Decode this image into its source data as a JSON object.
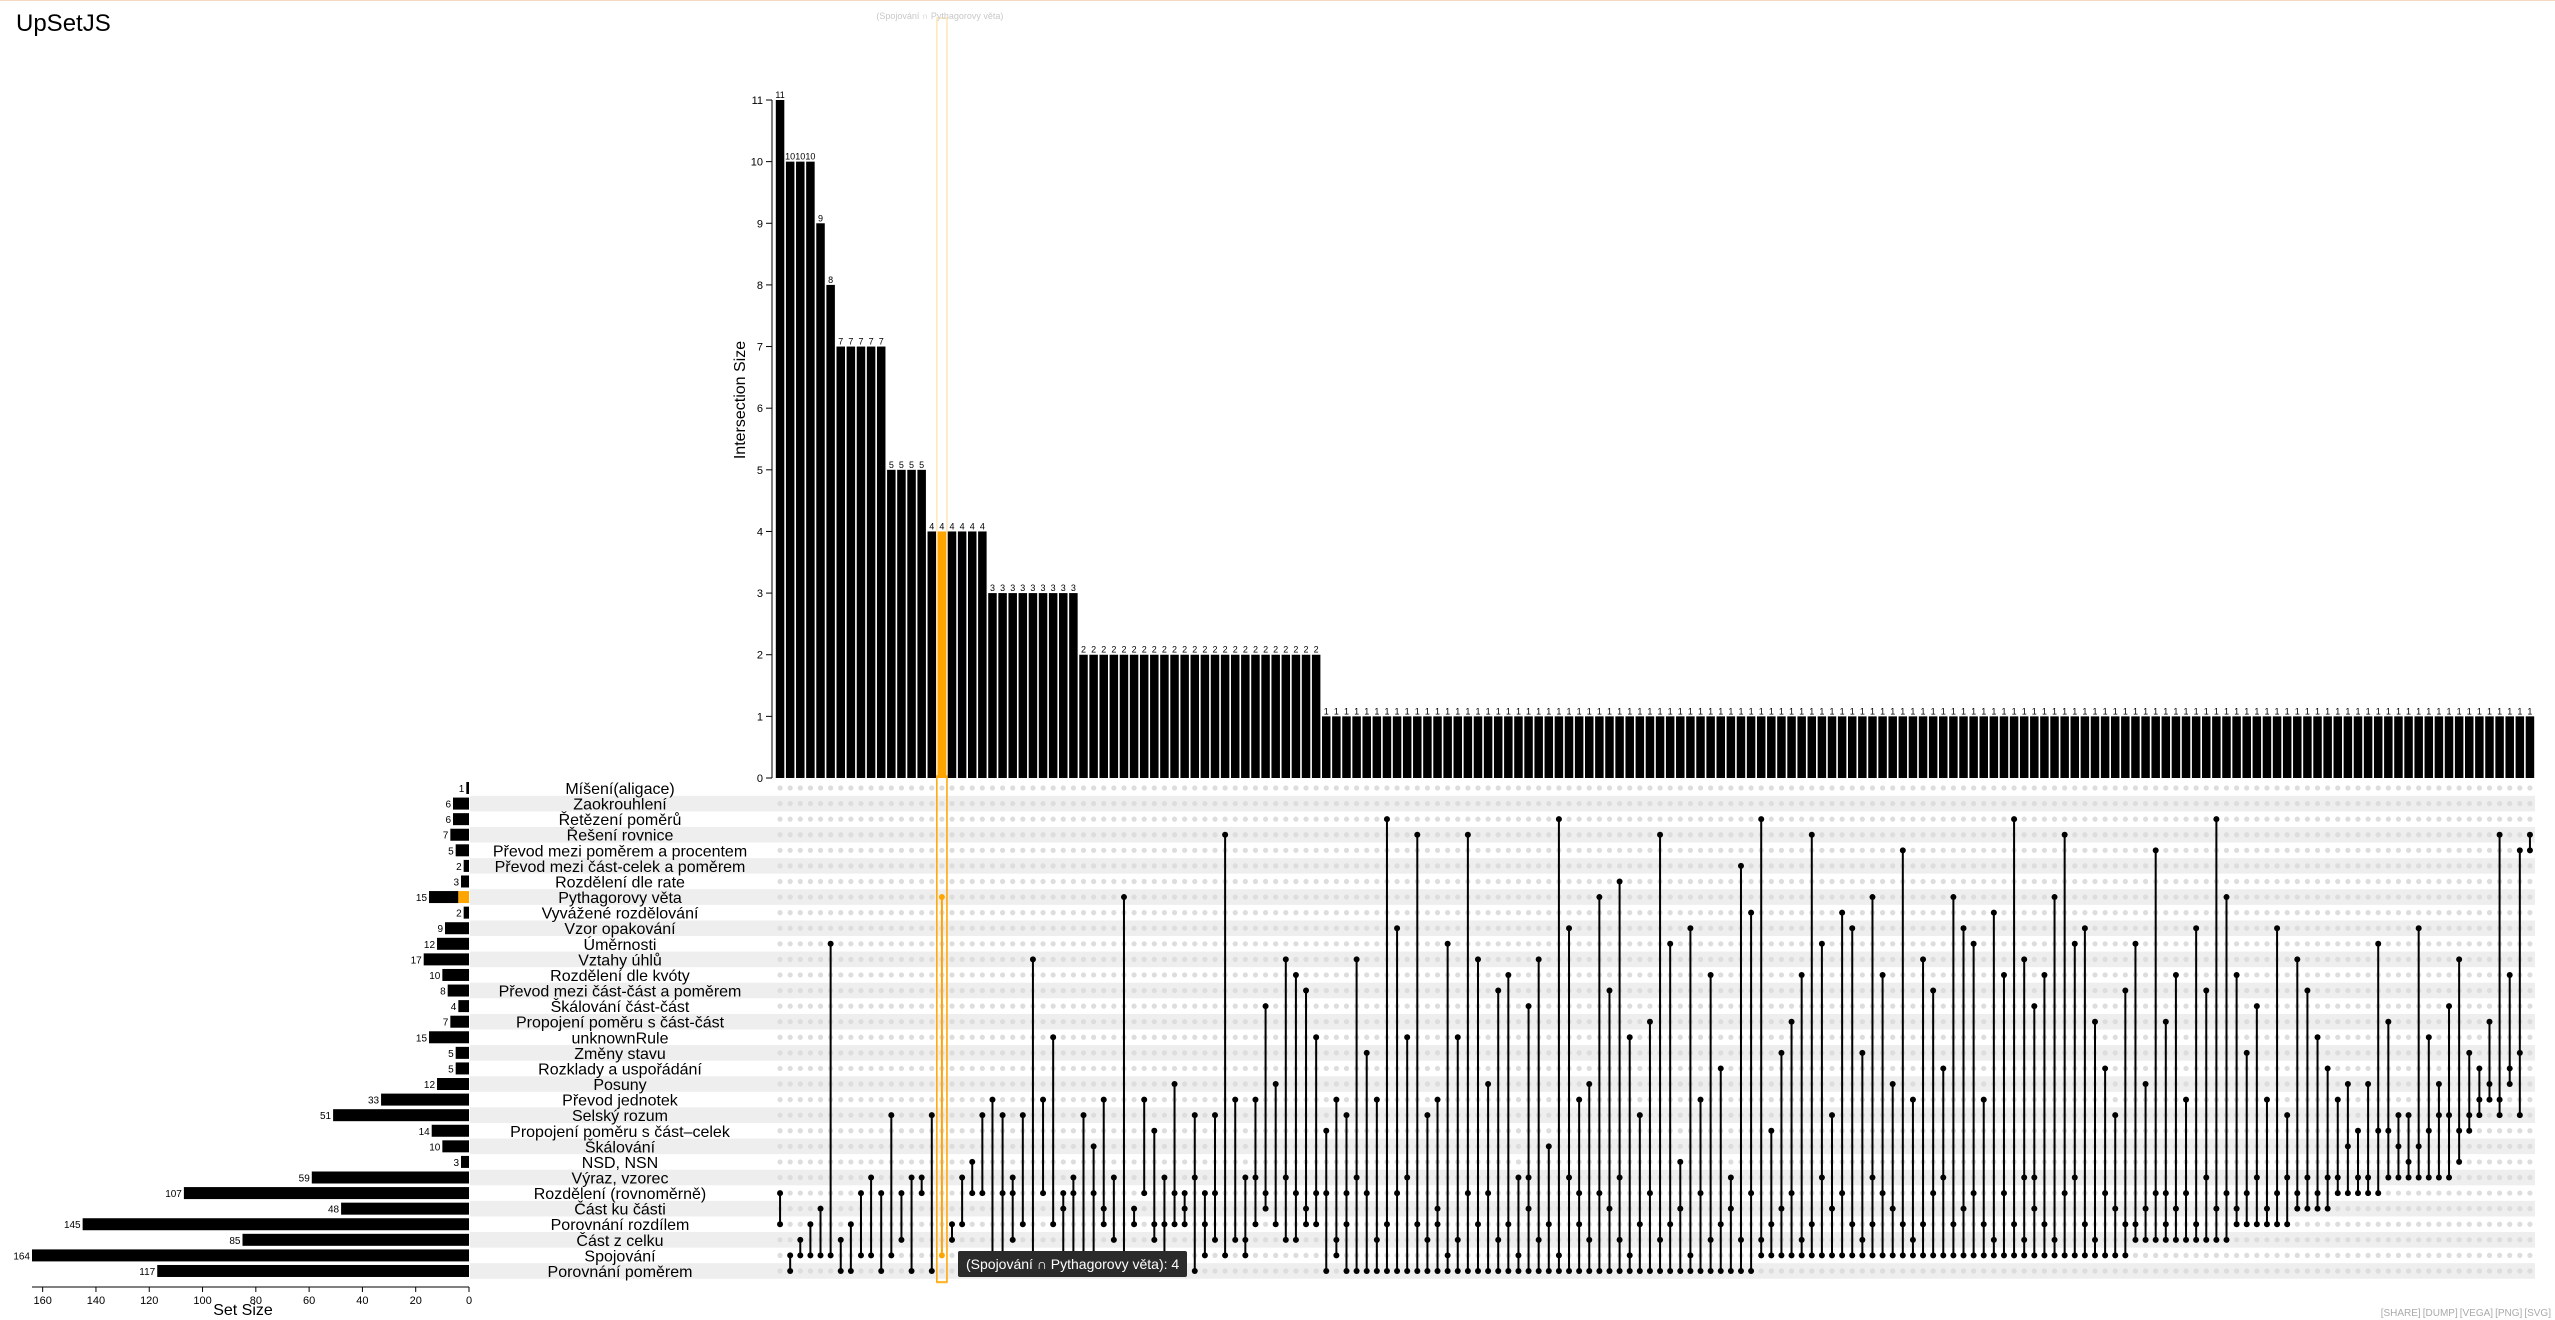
{
  "app": {
    "title": "UpSetJS"
  },
  "tooltip": "(Spojování ∩ Pythagorovy věta): 4",
  "highlight_label": "(Spojování ∩ Pythagorovy věta)",
  "toolbar": [
    "SHARE",
    "DUMP",
    "VEGA",
    "PNG",
    "SVG"
  ],
  "colors": {
    "bar": "#000000",
    "highlight": "#ffa500",
    "stripe": "#eeeeee",
    "dot_inactive": "#dddddd"
  },
  "chart_data": {
    "type": "upset",
    "intersection_axis": {
      "label": "Intersection Size",
      "ticks": [
        0,
        1,
        2,
        3,
        4,
        5,
        6,
        7,
        8,
        9,
        10,
        11
      ],
      "range": [
        0,
        11
      ]
    },
    "set_axis": {
      "label": "Set Size",
      "ticks": [
        160,
        140,
        120,
        100,
        80,
        60,
        40,
        20,
        0
      ],
      "range": [
        0,
        164
      ]
    },
    "highlight_set": "Pythagorovy věta",
    "highlight_set_value": 4,
    "highlight_index": 16,
    "sets": [
      {
        "name": "Míšení(aligace)",
        "size": 1
      },
      {
        "name": "Zaokrouhlení",
        "size": 6
      },
      {
        "name": "Řetězení poměrů",
        "size": 6
      },
      {
        "name": "Řešení rovnice",
        "size": 7
      },
      {
        "name": "Převod mezi poměrem a procentem",
        "size": 5
      },
      {
        "name": "Převod mezi část-celek a poměrem",
        "size": 2
      },
      {
        "name": "Rozdělení dle rate",
        "size": 3
      },
      {
        "name": "Pythagorovy věta",
        "size": 15
      },
      {
        "name": "Vyvážené rozdělování",
        "size": 2
      },
      {
        "name": "Vzor opakování",
        "size": 9
      },
      {
        "name": "Úměrnosti",
        "size": 12
      },
      {
        "name": "Vztahy úhlů",
        "size": 17
      },
      {
        "name": "Rozdělení dle kvóty",
        "size": 10
      },
      {
        "name": "Převod mezi část-část a poměrem",
        "size": 8
      },
      {
        "name": "Škálování část-část",
        "size": 4
      },
      {
        "name": "Propojení poměru s část-část",
        "size": 7
      },
      {
        "name": "unknownRule",
        "size": 15
      },
      {
        "name": "Změny stavu",
        "size": 5
      },
      {
        "name": "Rozklady a uspořádání",
        "size": 5
      },
      {
        "name": "Posuny",
        "size": 12
      },
      {
        "name": "Převod jednotek",
        "size": 33
      },
      {
        "name": "Selský rozum",
        "size": 51
      },
      {
        "name": "Propojení poměru s část–celek",
        "size": 14
      },
      {
        "name": "Škálování",
        "size": 10
      },
      {
        "name": "NSD, NSN",
        "size": 3
      },
      {
        "name": "Výraz, vzorec",
        "size": 59
      },
      {
        "name": "Rozdělení (rovnoměrně)",
        "size": 107
      },
      {
        "name": "Část ku části",
        "size": 48
      },
      {
        "name": "Porovnání rozdílem",
        "size": 145
      },
      {
        "name": "Část z celku",
        "size": 85
      },
      {
        "name": "Spojování",
        "size": 164
      },
      {
        "name": "Porovnání poměrem",
        "size": 117
      }
    ],
    "intersections": [
      [
        11,
        [
          28,
          26
        ]
      ],
      [
        10,
        [
          31,
          30
        ]
      ],
      [
        10,
        [
          30,
          29
        ]
      ],
      [
        10,
        [
          30,
          28
        ]
      ],
      [
        9,
        [
          30,
          27
        ]
      ],
      [
        8,
        [
          30,
          10
        ]
      ],
      [
        7,
        [
          31,
          29
        ]
      ],
      [
        7,
        [
          31,
          28
        ]
      ],
      [
        7,
        [
          30,
          26
        ]
      ],
      [
        7,
        [
          30,
          25
        ]
      ],
      [
        7,
        [
          31,
          26
        ]
      ],
      [
        5,
        [
          30,
          21
        ]
      ],
      [
        5,
        [
          29,
          26
        ]
      ],
      [
        5,
        [
          31,
          25
        ]
      ],
      [
        5,
        [
          26,
          25
        ]
      ],
      [
        4,
        [
          31,
          21
        ]
      ],
      [
        4,
        [
          30,
          7
        ]
      ],
      [
        4,
        [
          29,
          28
        ]
      ],
      [
        4,
        [
          28,
          25
        ]
      ],
      [
        4,
        [
          26,
          24
        ]
      ],
      [
        4,
        [
          26,
          21
        ]
      ],
      [
        3,
        [
          31,
          20
        ]
      ],
      [
        3,
        [
          30,
          26,
          21
        ]
      ],
      [
        3,
        [
          29,
          26,
          25
        ]
      ],
      [
        3,
        [
          28,
          21
        ]
      ],
      [
        3,
        [
          30,
          11
        ]
      ],
      [
        3,
        [
          26,
          20
        ]
      ],
      [
        3,
        [
          28,
          16
        ]
      ],
      [
        3,
        [
          30,
          27,
          26
        ]
      ],
      [
        3,
        [
          30,
          26,
          25
        ]
      ],
      [
        2,
        [
          31,
          30,
          21
        ]
      ],
      [
        2,
        [
          30,
          26,
          23
        ]
      ],
      [
        2,
        [
          28,
          27,
          20
        ]
      ],
      [
        2,
        [
          29,
          25
        ]
      ],
      [
        2,
        [
          30,
          7
        ]
      ],
      [
        2,
        [
          28,
          27
        ]
      ],
      [
        2,
        [
          26,
          20
        ]
      ],
      [
        2,
        [
          29,
          28,
          22
        ]
      ],
      [
        2,
        [
          30,
          28,
          25
        ]
      ],
      [
        2,
        [
          28,
          26,
          19
        ]
      ],
      [
        2,
        [
          28,
          27,
          26
        ]
      ],
      [
        2,
        [
          31,
          25,
          21
        ]
      ],
      [
        2,
        [
          30,
          28,
          26
        ]
      ],
      [
        2,
        [
          29,
          26,
          21
        ]
      ],
      [
        2,
        [
          30,
          3
        ]
      ],
      [
        2,
        [
          29,
          20
        ]
      ],
      [
        2,
        [
          30,
          29,
          25
        ]
      ],
      [
        2,
        [
          28,
          25,
          20
        ]
      ],
      [
        2,
        [
          27,
          26,
          14
        ]
      ],
      [
        2,
        [
          28,
          19
        ]
      ],
      [
        2,
        [
          29,
          25,
          11
        ]
      ],
      [
        2,
        [
          29,
          26,
          12
        ]
      ],
      [
        2,
        [
          28,
          27,
          13
        ]
      ],
      [
        2,
        [
          28,
          26,
          16
        ]
      ],
      [
        1,
        [
          31,
          26,
          22
        ]
      ],
      [
        1,
        [
          30,
          29,
          20
        ]
      ],
      [
        1,
        [
          31,
          28,
          26,
          21
        ]
      ],
      [
        1,
        [
          31,
          25,
          11
        ]
      ],
      [
        1,
        [
          31,
          26,
          17
        ]
      ],
      [
        1,
        [
          31,
          29,
          20
        ]
      ],
      [
        1,
        [
          31,
          28,
          2
        ]
      ],
      [
        1,
        [
          31,
          26,
          9
        ]
      ],
      [
        1,
        [
          31,
          25,
          16
        ]
      ],
      [
        1,
        [
          31,
          28,
          3
        ]
      ],
      [
        1,
        [
          31,
          29,
          21
        ]
      ],
      [
        1,
        [
          31,
          28,
          27,
          20
        ]
      ],
      [
        1,
        [
          31,
          30,
          10
        ]
      ],
      [
        1,
        [
          31,
          29,
          16
        ]
      ],
      [
        1,
        [
          31,
          26,
          3
        ]
      ],
      [
        1,
        [
          31,
          28,
          11
        ]
      ],
      [
        1,
        [
          31,
          26,
          19
        ]
      ],
      [
        1,
        [
          31,
          29,
          13
        ]
      ],
      [
        1,
        [
          31,
          28,
          12
        ]
      ],
      [
        1,
        [
          31,
          30,
          25
        ]
      ],
      [
        1,
        [
          31,
          27,
          25,
          14
        ]
      ],
      [
        1,
        [
          31,
          29,
          11
        ]
      ],
      [
        1,
        [
          31,
          28,
          23
        ]
      ],
      [
        1,
        [
          31,
          30,
          2
        ]
      ],
      [
        1,
        [
          31,
          25,
          9
        ]
      ],
      [
        1,
        [
          31,
          28,
          26,
          20
        ]
      ],
      [
        1,
        [
          31,
          29,
          19
        ]
      ],
      [
        1,
        [
          31,
          26,
          7
        ]
      ],
      [
        1,
        [
          31,
          27,
          13
        ]
      ],
      [
        1,
        [
          31,
          29,
          25,
          6
        ]
      ],
      [
        1,
        [
          31,
          30,
          16
        ]
      ],
      [
        1,
        [
          31,
          28,
          21
        ]
      ],
      [
        1,
        [
          31,
          26,
          15
        ]
      ],
      [
        1,
        [
          31,
          29,
          3
        ]
      ],
      [
        1,
        [
          31,
          28,
          10
        ]
      ],
      [
        1,
        [
          31,
          27,
          24
        ]
      ],
      [
        1,
        [
          31,
          30,
          9
        ]
      ],
      [
        1,
        [
          31,
          26,
          20
        ]
      ],
      [
        1,
        [
          31,
          29,
          12
        ]
      ],
      [
        1,
        [
          31,
          28,
          18
        ]
      ],
      [
        1,
        [
          31,
          27,
          25
        ]
      ],
      [
        1,
        [
          31,
          29,
          5
        ]
      ],
      [
        1,
        [
          31,
          26,
          8
        ]
      ],
      [
        1,
        [
          30,
          29,
          2
        ]
      ],
      [
        1,
        [
          30,
          28,
          22
        ]
      ],
      [
        1,
        [
          30,
          27,
          17
        ]
      ],
      [
        1,
        [
          30,
          26,
          15
        ]
      ],
      [
        1,
        [
          30,
          29,
          12
        ]
      ],
      [
        1,
        [
          30,
          28,
          3
        ]
      ],
      [
        1,
        [
          30,
          25,
          10
        ]
      ],
      [
        1,
        [
          30,
          27,
          21
        ]
      ],
      [
        1,
        [
          30,
          26,
          8
        ]
      ],
      [
        1,
        [
          30,
          28,
          9
        ]
      ],
      [
        1,
        [
          30,
          29,
          17
        ]
      ],
      [
        1,
        [
          30,
          28,
          25,
          7
        ]
      ],
      [
        1,
        [
          30,
          26,
          12
        ]
      ],
      [
        1,
        [
          30,
          27,
          19
        ]
      ],
      [
        1,
        [
          30,
          28,
          4
        ]
      ],
      [
        1,
        [
          30,
          29,
          20
        ]
      ],
      [
        1,
        [
          30,
          28,
          11
        ]
      ],
      [
        1,
        [
          30,
          26,
          13
        ]
      ],
      [
        1,
        [
          30,
          25,
          18
        ]
      ],
      [
        1,
        [
          30,
          28,
          7
        ]
      ],
      [
        1,
        [
          30,
          27,
          9
        ]
      ],
      [
        1,
        [
          30,
          26,
          10
        ]
      ],
      [
        1,
        [
          30,
          28,
          20
        ]
      ],
      [
        1,
        [
          30,
          29,
          8
        ]
      ],
      [
        1,
        [
          30,
          26,
          12
        ]
      ],
      [
        1,
        [
          30,
          28,
          2
        ]
      ],
      [
        1,
        [
          30,
          29,
          25,
          11
        ]
      ],
      [
        1,
        [
          30,
          27,
          25,
          14
        ]
      ],
      [
        1,
        [
          30,
          28,
          12
        ]
      ],
      [
        1,
        [
          30,
          29,
          7
        ]
      ],
      [
        1,
        [
          30,
          26,
          3
        ]
      ],
      [
        1,
        [
          30,
          25,
          10
        ]
      ],
      [
        1,
        [
          30,
          28,
          9
        ]
      ],
      [
        1,
        [
          30,
          29,
          15
        ]
      ],
      [
        1,
        [
          30,
          26,
          18
        ]
      ],
      [
        1,
        [
          30,
          27,
          21
        ]
      ],
      [
        1,
        [
          30,
          28,
          13
        ]
      ],
      [
        1,
        [
          29,
          28,
          10
        ]
      ],
      [
        1,
        [
          29,
          27,
          19
        ]
      ],
      [
        1,
        [
          29,
          26,
          4
        ]
      ],
      [
        1,
        [
          29,
          28,
          26,
          15
        ]
      ],
      [
        1,
        [
          29,
          27,
          12
        ]
      ],
      [
        1,
        [
          29,
          26,
          20
        ]
      ],
      [
        1,
        [
          29,
          28,
          9
        ]
      ],
      [
        1,
        [
          29,
          25,
          13
        ]
      ],
      [
        1,
        [
          29,
          27,
          2
        ]
      ],
      [
        1,
        [
          29,
          26,
          7
        ]
      ],
      [
        1,
        [
          28,
          27,
          12
        ]
      ],
      [
        1,
        [
          28,
          26,
          17
        ]
      ],
      [
        1,
        [
          28,
          25,
          14
        ]
      ],
      [
        1,
        [
          28,
          27,
          20
        ]
      ],
      [
        1,
        [
          28,
          26,
          9
        ]
      ],
      [
        1,
        [
          28,
          25,
          21
        ]
      ],
      [
        1,
        [
          27,
          26,
          11
        ]
      ],
      [
        1,
        [
          27,
          25,
          13
        ]
      ],
      [
        1,
        [
          27,
          26,
          16
        ]
      ],
      [
        1,
        [
          27,
          25,
          18
        ]
      ],
      [
        1,
        [
          26,
          25,
          20
        ]
      ],
      [
        1,
        [
          26,
          23,
          19
        ]
      ],
      [
        1,
        [
          26,
          25,
          22
        ]
      ],
      [
        1,
        [
          26,
          25,
          19
        ]
      ],
      [
        1,
        [
          26,
          22,
          10
        ]
      ],
      [
        1,
        [
          25,
          22,
          15
        ]
      ],
      [
        1,
        [
          25,
          21,
          23
        ]
      ],
      [
        1,
        [
          25,
          21,
          24
        ]
      ],
      [
        1,
        [
          25,
          23,
          9
        ]
      ],
      [
        1,
        [
          25,
          22,
          16
        ]
      ],
      [
        1,
        [
          25,
          21,
          19
        ]
      ],
      [
        1,
        [
          25,
          21,
          14
        ]
      ],
      [
        1,
        [
          24,
          22,
          11
        ]
      ],
      [
        1,
        [
          22,
          21,
          17
        ]
      ],
      [
        1,
        [
          21,
          20,
          18
        ]
      ],
      [
        1,
        [
          20,
          19,
          15
        ]
      ],
      [
        1,
        [
          21,
          20,
          3
        ]
      ],
      [
        1,
        [
          19,
          18,
          12
        ]
      ],
      [
        1,
        [
          21,
          17,
          4
        ]
      ],
      [
        1,
        [
          4,
          3
        ]
      ]
    ]
  }
}
